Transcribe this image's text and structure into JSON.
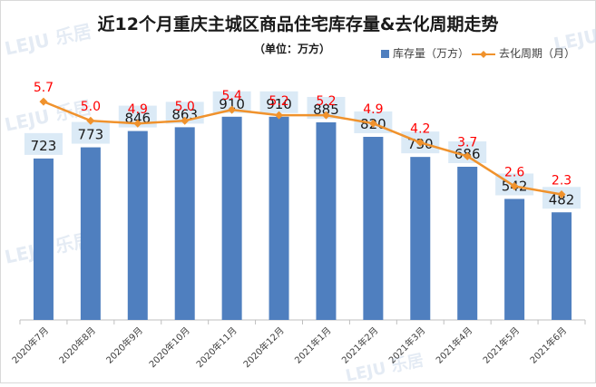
{
  "chart_data": {
    "type": "bar",
    "title": "近12个月重庆主城区商品住宅库存量&去化周期走势",
    "subtitle": "（单位：万方）",
    "categories": [
      "2020年7月",
      "2020年8月",
      "2020年9月",
      "2020年10月",
      "2020年11月",
      "2020年12月",
      "2021年1月",
      "2021年2月",
      "2021年3月",
      "2021年4月",
      "2021年5月",
      "2021年6月"
    ],
    "series": [
      {
        "name": "库存量（万方）",
        "type": "bar",
        "color": "#4f7fbf",
        "values": [
          723,
          773,
          846,
          863,
          910,
          910,
          885,
          820,
          730,
          686,
          542,
          482
        ]
      },
      {
        "name": "去化周期（月）",
        "type": "line",
        "color": "#f0922c",
        "label_color": "#ff0000",
        "values": [
          5.7,
          5.0,
          4.9,
          5.0,
          5.4,
          5.2,
          5.2,
          4.9,
          4.2,
          3.7,
          2.6,
          2.3
        ]
      }
    ],
    "bar_ylim": [
      0,
      1100
    ],
    "line_ylim": [
      -2.3,
      6.7
    ],
    "grid": false,
    "legend_position": "top-right",
    "watermark_text": "乐居"
  }
}
